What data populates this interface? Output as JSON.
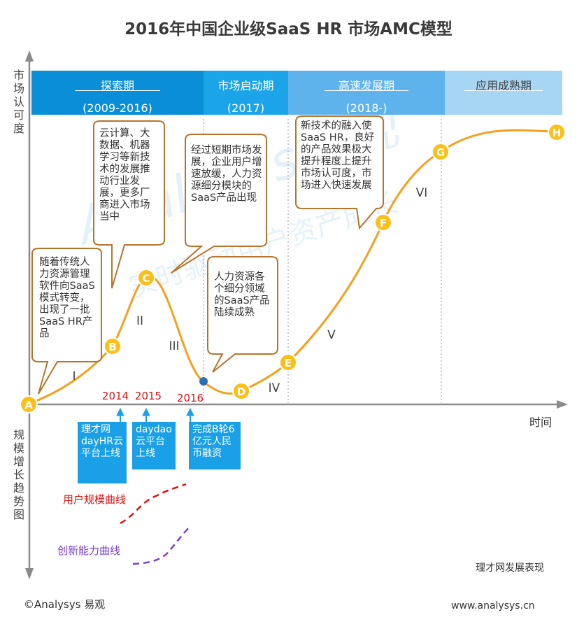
{
  "title": "2016年中国企业级SaaS HR 市场AMC模型",
  "y_axis_top": "市场认可度",
  "y_axis_bottom": "规模增长趋势图",
  "x_axis": "时间",
  "phases": [
    {
      "name": "探索期",
      "years": "(2009-2016)"
    },
    {
      "name": "市场启动期",
      "years": "(2017)"
    },
    {
      "name": "高速发展期",
      "years": "(2018-)"
    },
    {
      "name": "应用成熟期",
      "years": ""
    }
  ],
  "points": [
    "A",
    "B",
    "C",
    "D",
    "E",
    "F",
    "G",
    "H"
  ],
  "stages": [
    "I",
    "II",
    "III",
    "IV",
    "V",
    "VI"
  ],
  "bubbles": {
    "b1": "随着传统人力资源管理软件向SaaS模式转变，出现了一批SaaS HR产品",
    "b2": "云计算、大数据、机器学习等新技术的发展推动行业发展，更多厂商进入市场当中",
    "b3": "经过短期市场发展，企业用户增速放缓，人力资源细分模块的SaaS产品出现",
    "b4": "人力资源各个细分领域的SaaS产品陆续成熟",
    "b5": "新技术的融入使SaaS HR，良好的产品效果极大提升程度上提升市场认可度，市场进入快速发展"
  },
  "years": [
    "2014",
    "2015",
    "2016"
  ],
  "events": [
    "理才网dayHR云平台上线",
    "daydao云平台上线",
    "完成B轮6亿元人民币融资"
  ],
  "legend": {
    "user": "用户规模曲线",
    "innovation": "创新能力曲线"
  },
  "watermark": {
    "brand": "Analysys易观",
    "slogan": "实时驱动用户资产成长"
  },
  "note": "理才网发展表现",
  "copyright": "©Analysys 易观",
  "url": "www.analysys.cn",
  "colors": {
    "curve": "#f5a01e",
    "point_fill": "#fbbf17",
    "phase1": "#0a8ed8",
    "phase2": "#1ba4e8",
    "phase3": "#5fb3ec",
    "phase4": "#a7d6f5",
    "bubble_border": "#b8742a",
    "event_box": "#1aa0e6",
    "year_red": "#e01010",
    "user_curve": "#e01010",
    "innovation_curve": "#7a3cd6"
  }
}
